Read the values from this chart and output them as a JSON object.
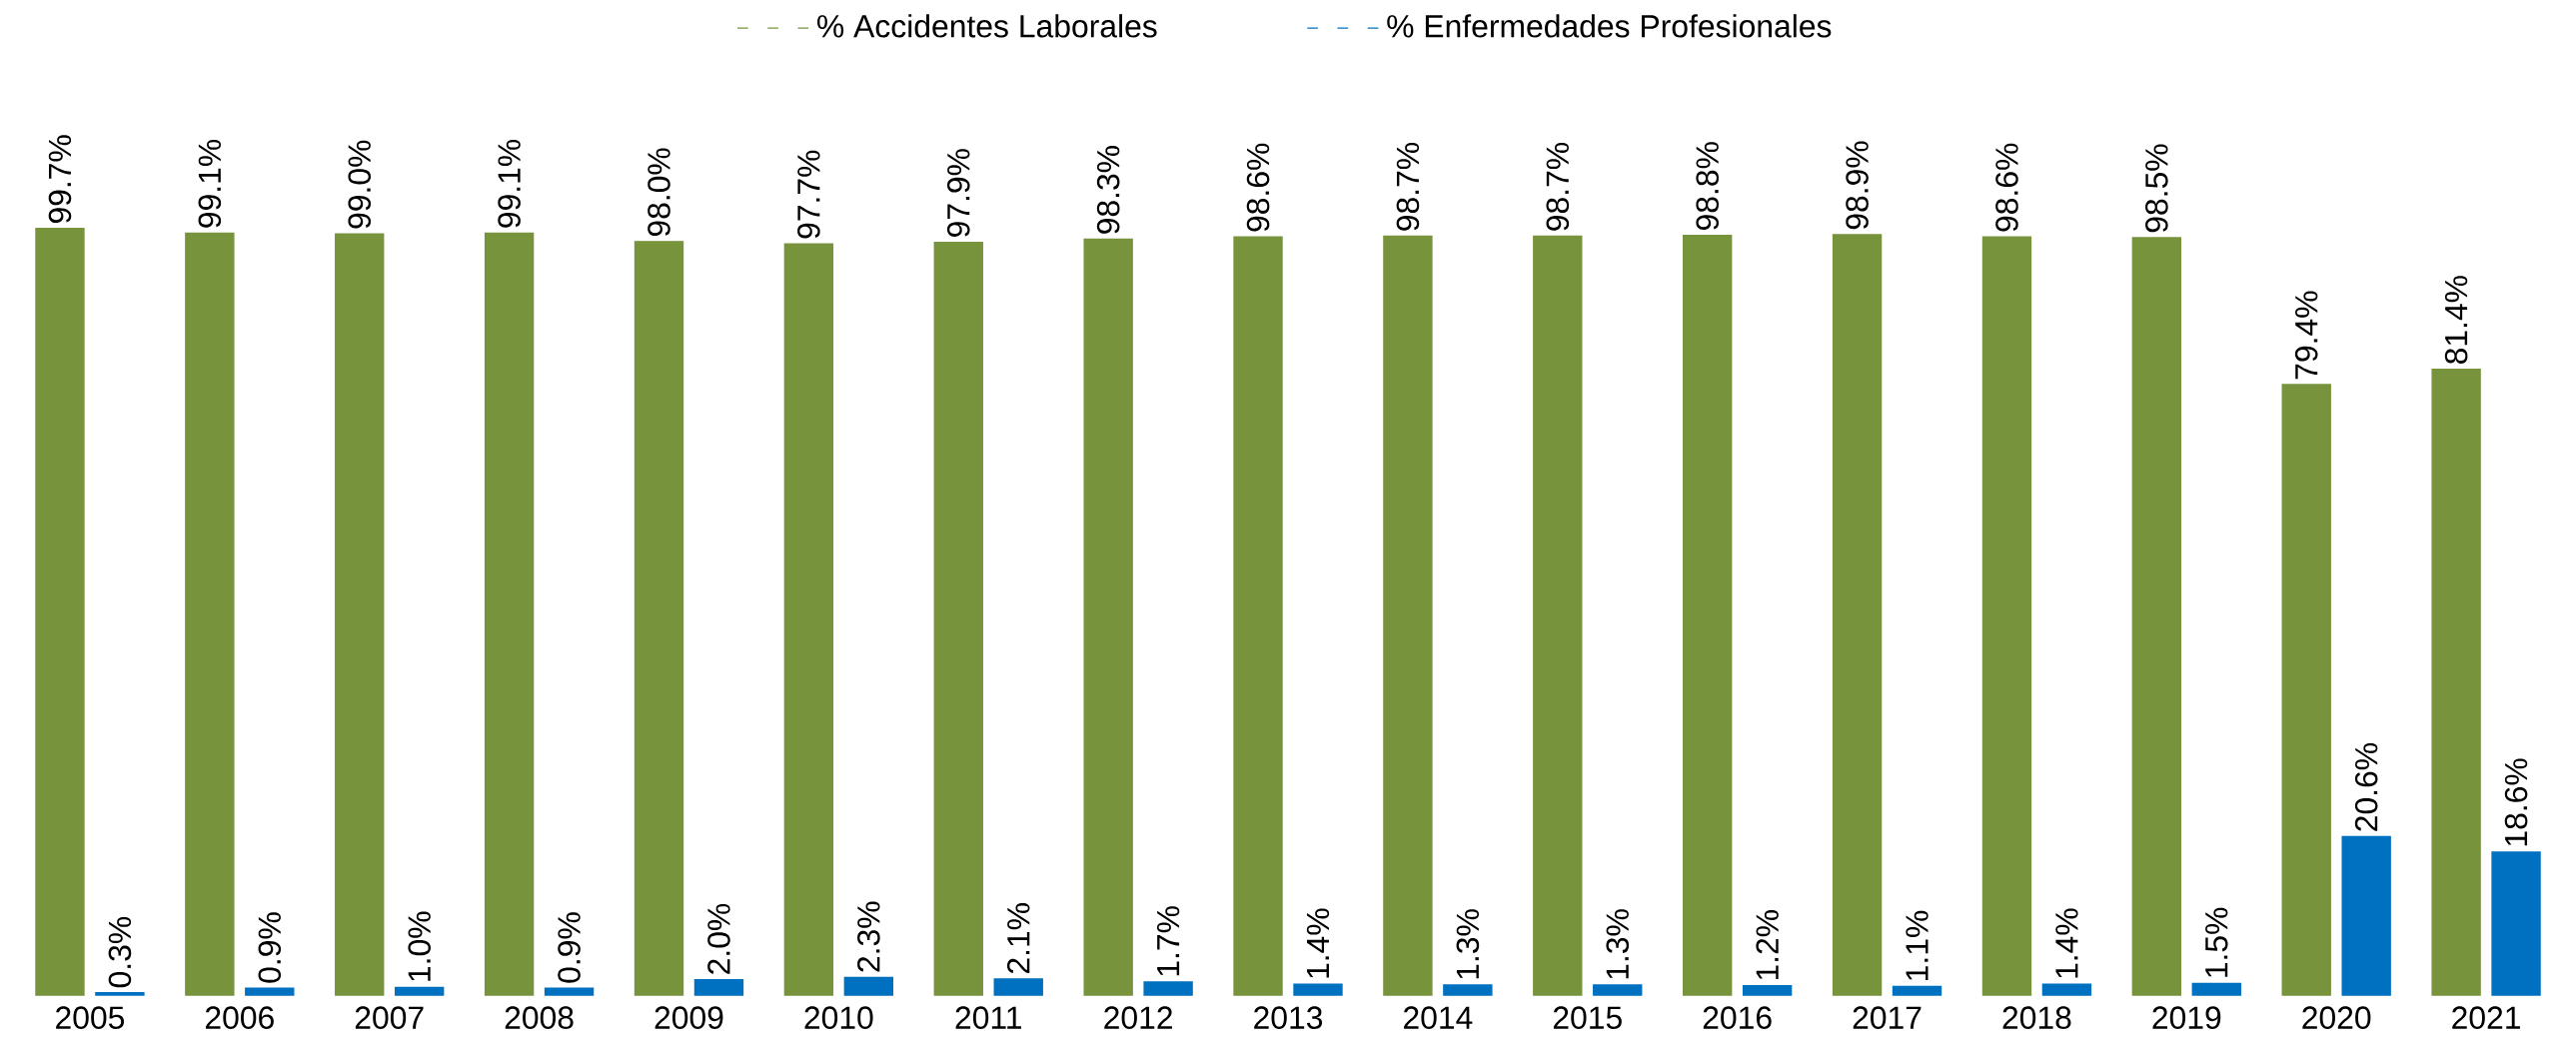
{
  "chart_data": {
    "type": "bar",
    "categories": [
      "2005",
      "2006",
      "2007",
      "2008",
      "2009",
      "2010",
      "2011",
      "2012",
      "2013",
      "2014",
      "2015",
      "2016",
      "2017",
      "2018",
      "2019",
      "2020",
      "2021"
    ],
    "series": [
      {
        "name": "% Accidentes Laborales",
        "color": "#77933c",
        "values": [
          99.7,
          99.1,
          99.0,
          99.1,
          98.0,
          97.7,
          97.9,
          98.3,
          98.6,
          98.7,
          98.7,
          98.8,
          98.9,
          98.6,
          98.5,
          79.4,
          81.4
        ],
        "value_labels": [
          "99.7%",
          "99.1%",
          "99.0%",
          "99.1%",
          "98.0%",
          "97.7%",
          "97.9%",
          "98.3%",
          "98.6%",
          "98.7%",
          "98.7%",
          "98.8%",
          "98.9%",
          "98.6%",
          "98.5%",
          "79.4%",
          "81.4%"
        ]
      },
      {
        "name": "% Enfermedades Profesionales",
        "color": "#0070c0",
        "values": [
          0.3,
          0.9,
          1.0,
          0.9,
          2.0,
          2.3,
          2.1,
          1.7,
          1.4,
          1.3,
          1.3,
          1.2,
          1.1,
          1.4,
          1.5,
          20.6,
          18.6
        ],
        "value_labels": [
          "0.3%",
          "0.9%",
          "1.0%",
          "0.9%",
          "2.0%",
          "2.3%",
          "2.1%",
          "1.7%",
          "1.4%",
          "1.3%",
          "1.3%",
          "1.2%",
          "1.1%",
          "1.4%",
          "1.5%",
          "20.6%",
          "18.6%"
        ]
      }
    ],
    "legend": "top"
  }
}
